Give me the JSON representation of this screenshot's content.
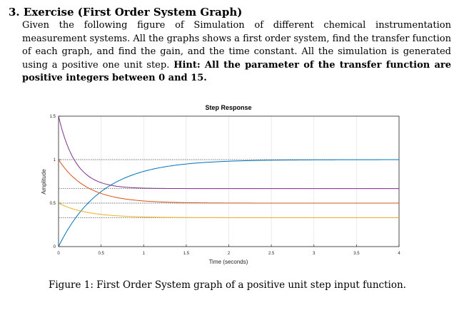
{
  "exercise": {
    "number": "3.",
    "title": "Exercise (First Order System Graph)",
    "body": "Given the following figure of Simulation of different chemical instrumentation measurement systems. All the graphs shows a first order system, find the transfer function of each graph, and find the gain, and the time constant. All the simulation is generated using a positive one unit step.",
    "hint": "Hint: All the parameter of the transfer function are positive integers between 0 and 15."
  },
  "caption": "Figure 1: First Order System graph of a positive unit step input function.",
  "chart_data": {
    "type": "line",
    "title": "Step Response",
    "xlabel": "Time (seconds)",
    "ylabel": "Amplitude",
    "xlim": [
      0,
      4
    ],
    "ylim": [
      0,
      1.5
    ],
    "x_ticks": [
      "0",
      "0.5",
      "1",
      "1.5",
      "2",
      "2.5",
      "3",
      "3.5",
      "4"
    ],
    "y_ticks": [
      "0",
      "0.5",
      "1",
      "1.5"
    ],
    "grid": true,
    "series": [
      {
        "color": "#0072BD",
        "initial": 0.0,
        "final": 1.0,
        "time_constant": 0.5
      },
      {
        "color": "#D95319",
        "initial": 1.0,
        "final": 0.5,
        "time_constant": 0.333
      },
      {
        "color": "#EDB120",
        "initial": 0.5,
        "final": 0.333,
        "time_constant": 0.333
      },
      {
        "color": "#7E2F8E",
        "initial": 1.5,
        "final": 0.667,
        "time_constant": 0.2
      }
    ],
    "steady_state_lines": [
      1.0,
      0.667,
      0.5,
      0.333
    ]
  }
}
